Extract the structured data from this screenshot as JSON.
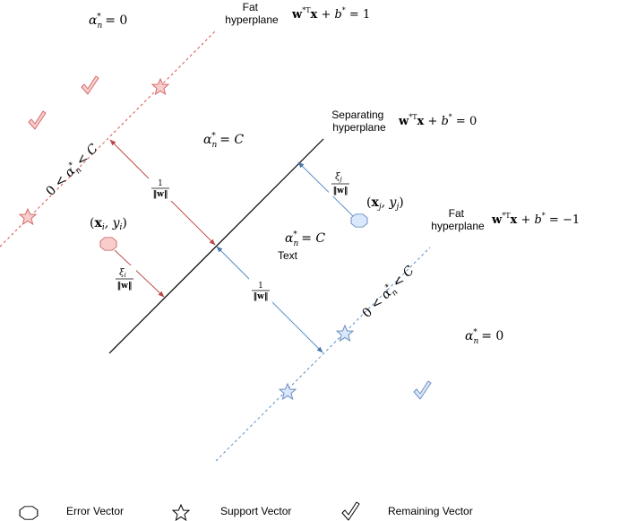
{
  "colors": {
    "red_line": "#d9534f",
    "red_fill": "#f8cecc",
    "red_stroke": "#d26d6d",
    "blue_line": "#5b8fc7",
    "blue_fill": "#dae8fc",
    "blue_stroke": "#6c8ebf",
    "black": "#000000"
  },
  "labels": {
    "fat_top": [
      "Fat",
      "hyperplane"
    ],
    "separating": [
      "Separating",
      "hyperplane"
    ],
    "fat_bottom": [
      "Fat",
      "hyperplane"
    ],
    "text": "Text"
  },
  "equations": {
    "top": {
      "bold_w": "w",
      "sup": "*T",
      "bold_x": "x",
      "rest": " + b",
      "sup2": "*",
      "tail": " = 1"
    },
    "middle": {
      "bold_w": "w",
      "sup": "*T",
      "bold_x": "x",
      "rest": " + b",
      "sup2": "*",
      "tail": " = 0"
    },
    "bottom": {
      "bold_w": "w",
      "sup": "*T",
      "bold_x": "x",
      "rest": " + b",
      "sup2": "*",
      "tail": " = −1"
    }
  },
  "alphas": {
    "symbol": "α",
    "sub": "n",
    "sup": "*",
    "top_left": " = 0",
    "upper_mid": " = C",
    "lower_mid": " = C",
    "bottom_right": " = 0",
    "range_prefix": "0 < ",
    "range_suffix_top": " < C",
    "range_suffix_bottom": " < C"
  },
  "points": {
    "xi": {
      "open": "(",
      "bold": "x",
      "sub": "i",
      "mid": ", y",
      "sub2": "i",
      "close": ")"
    },
    "xj": {
      "open": "(",
      "bold": "x",
      "sub": "j",
      "mid": ", y",
      "sub2": "j",
      "close": ")"
    }
  },
  "fractions": {
    "margin_num": "1",
    "margin_den": "‖w‖",
    "xi_num": "ξ",
    "xi_num_sub": "i",
    "xj_num": "ξ",
    "xj_num_sub": "j"
  },
  "legend": [
    {
      "icon": "octagon-icon",
      "label": "Error Vector"
    },
    {
      "icon": "star-icon",
      "label": "Support Vector"
    },
    {
      "icon": "checkmark-icon",
      "label": "Remaining Vector"
    }
  ]
}
